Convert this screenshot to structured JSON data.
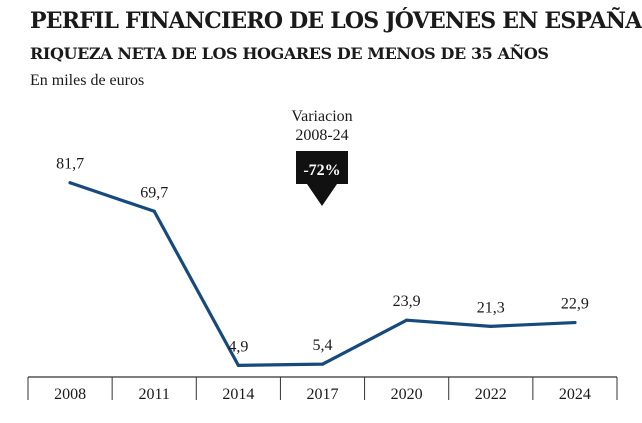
{
  "header": {
    "title": "PERFIL FINANCIERO DE LOS JÓVENES EN ESPAÑA",
    "subtitle": "RIQUEZA NETA DE LOS HOGARES DE MENOS DE 35 AÑOS",
    "unit": "En miles de euros"
  },
  "annotation": {
    "line1": "Variacion",
    "line2": "2008-24",
    "badge": "-72%"
  },
  "colors": {
    "line": "#174a7c",
    "axis": "#333333",
    "badge": "#111111"
  },
  "chart_data": {
    "type": "line",
    "categories": [
      "2008",
      "2011",
      "2014",
      "2017",
      "2020",
      "2022",
      "2024"
    ],
    "values": [
      81.7,
      69.7,
      4.9,
      5.4,
      23.9,
      21.3,
      22.9
    ],
    "data_labels": [
      "81,7",
      "69,7",
      "4,9",
      "5,4",
      "23,9",
      "21,3",
      "22,9"
    ],
    "title": "PERFIL FINANCIERO DE LOS JÓVENES EN ESPAÑA",
    "subtitle": "RIQUEZA NETA DE LOS HOGARES DE MENOS DE 35 AÑOS",
    "ylabel": "En miles de euros",
    "xlabel": "",
    "ylim": [
      0,
      90
    ],
    "grid": false,
    "legend": "none"
  }
}
